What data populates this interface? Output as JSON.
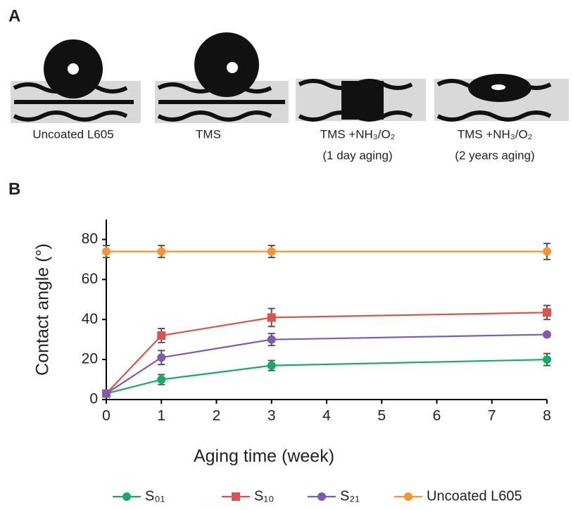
{
  "panel_a": {
    "label": "A",
    "captions": [
      [
        "Uncoated L605"
      ],
      [
        "TMS"
      ],
      [
        "TMS +NH₃/O₂",
        "(1 day aging)"
      ],
      [
        "TMS +NH₃/O₂",
        "(2 years aging)"
      ]
    ]
  },
  "chart_data": {
    "type": "line",
    "panel_label": "B",
    "x_label": "Aging time (week)",
    "y_label": "Contact angle (°)",
    "x": [
      0,
      1,
      3,
      8
    ],
    "xlim": [
      0,
      8
    ],
    "xticks": [
      0,
      1,
      2,
      3,
      4,
      5,
      6,
      7,
      8
    ],
    "ylim": [
      0,
      90
    ],
    "yticks": [
      0,
      20,
      40,
      60,
      80
    ],
    "legend": "bottom",
    "series": [
      {
        "name": "S₀₁",
        "color": "#1aa865",
        "marker": "circle",
        "values": [
          3,
          10,
          17,
          20
        ],
        "errors": [
          0,
          2.5,
          2.5,
          3
        ]
      },
      {
        "name": "S₁₀",
        "color": "#d9534f",
        "marker": "square",
        "values": [
          3,
          32,
          41,
          43.5
        ],
        "errors": [
          0,
          3.5,
          4.5,
          3.5
        ]
      },
      {
        "name": "S₂₁",
        "color": "#7e5ab0",
        "marker": "circle",
        "values": [
          3,
          21,
          30,
          32.5
        ],
        "errors": [
          0,
          3.5,
          3,
          1
        ]
      },
      {
        "name": "Uncoated L605",
        "color": "#f7943a",
        "marker": "circle",
        "values": [
          74,
          74,
          74,
          74
        ],
        "errors": [
          3,
          3,
          3,
          4
        ]
      }
    ]
  }
}
